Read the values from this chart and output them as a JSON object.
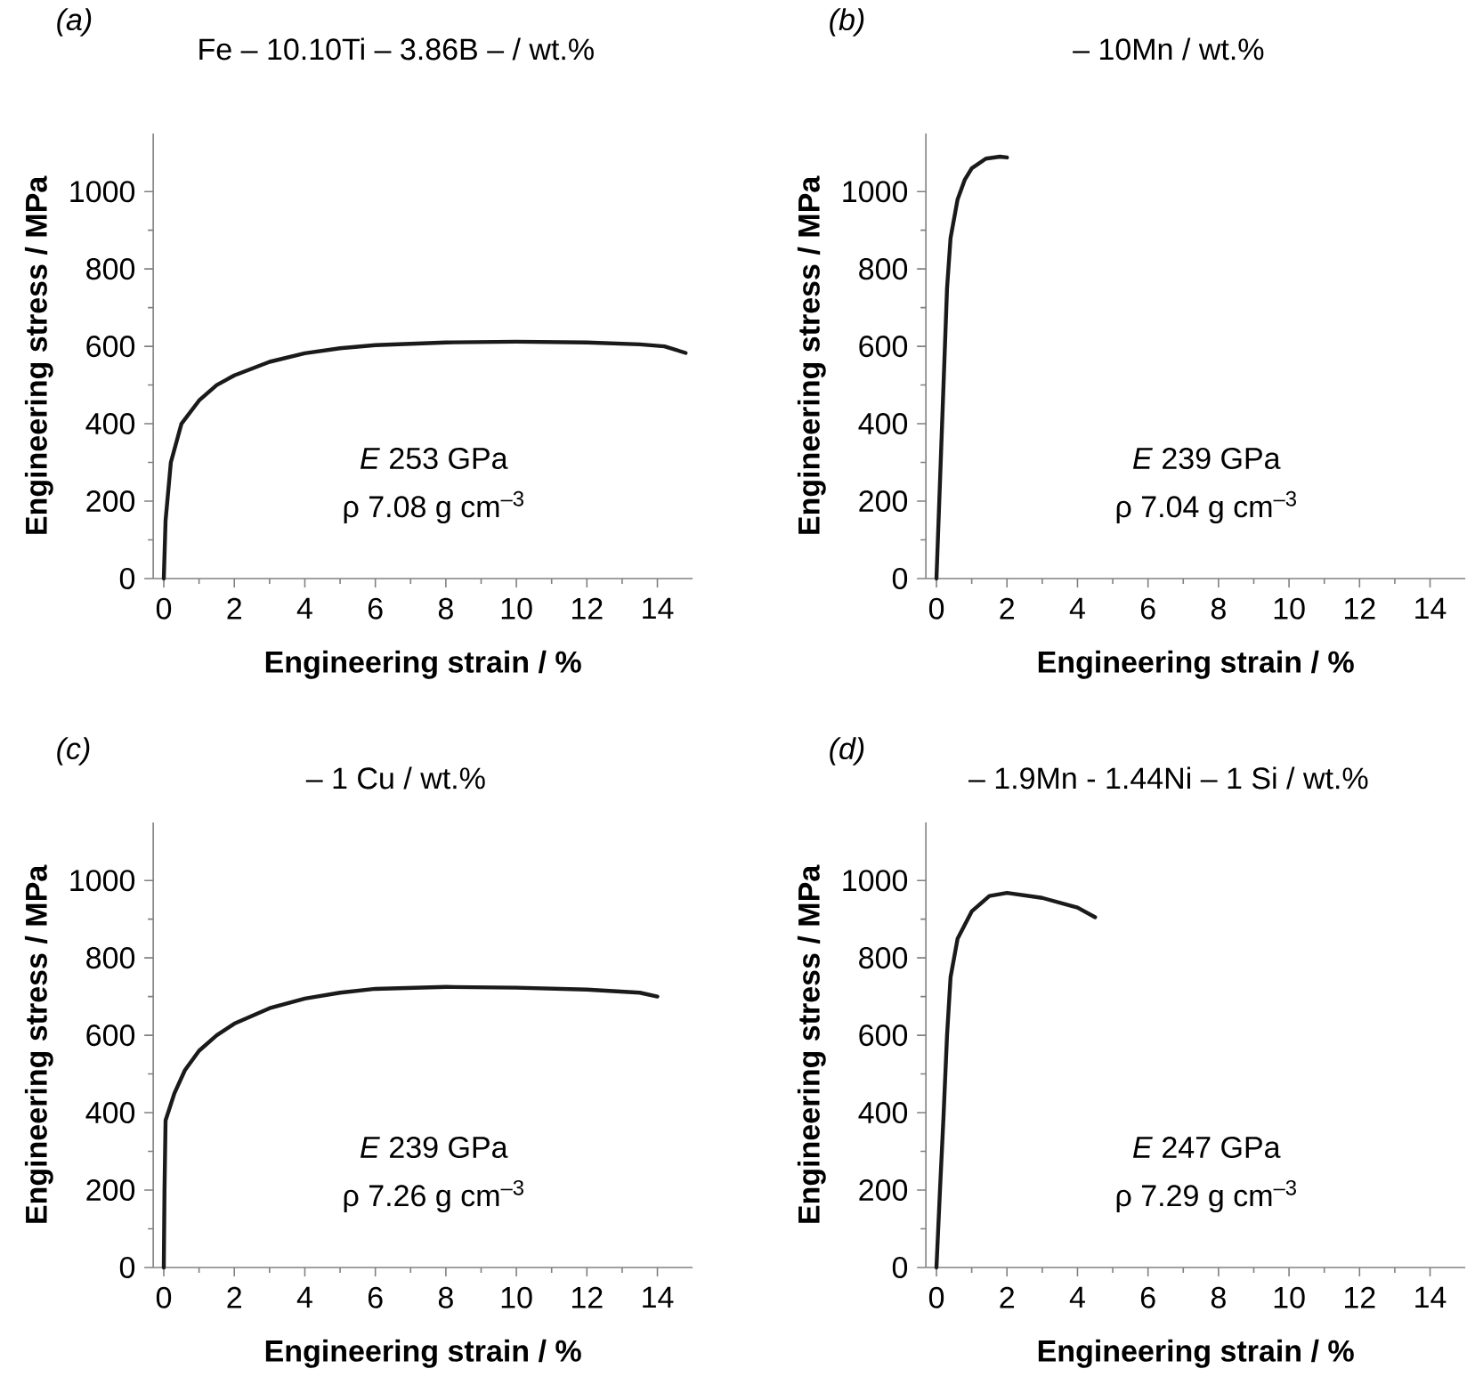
{
  "chart_data": [
    {
      "type": "line",
      "title": "Fe – 10.10Ti – 3.86B – / wt.%",
      "xlabel": "Engineering strain / %",
      "ylabel": "Engineering stress / MPa",
      "xlim": [
        -0.3,
        15
      ],
      "ylim": [
        0,
        1150
      ],
      "xticks": [
        0,
        2,
        4,
        6,
        8,
        10,
        12,
        14
      ],
      "yticks": [
        0,
        200,
        400,
        600,
        800,
        1000
      ],
      "annotations": [
        "*(a)*",
        "*E* 253 GPa",
        "ρ 7.08 g cm$^{–3}$"
      ],
      "series": [
        {
          "color": "#1a1a1a",
          "x": [
            0,
            0.05,
            0.2,
            0.5,
            1,
            1.5,
            2,
            3,
            4,
            5,
            6,
            8,
            10,
            12,
            13.5,
            14.2,
            14.8
          ],
          "values": [
            0,
            150,
            300,
            400,
            460,
            500,
            525,
            560,
            582,
            595,
            603,
            610,
            612,
            610,
            605,
            600,
            583
          ]
        }
      ]
    },
    {
      "type": "line",
      "title": "– 10Mn / wt.%",
      "xlabel": "Engineering strain / %",
      "ylabel": "Engineering stress / MPa",
      "xlim": [
        -0.3,
        15
      ],
      "ylim": [
        0,
        1150
      ],
      "xticks": [
        0,
        2,
        4,
        6,
        8,
        10,
        12,
        14
      ],
      "yticks": [
        0,
        200,
        400,
        600,
        800,
        1000
      ],
      "annotations": [
        "*(b)*",
        "*E* 239 GPa",
        "ρ 7.04 g cm$^{–3}$"
      ],
      "series": [
        {
          "color": "#1a1a1a",
          "x": [
            0,
            0.1,
            0.2,
            0.3,
            0.4,
            0.6,
            0.8,
            1,
            1.4,
            1.8,
            2
          ],
          "values": [
            0,
            250,
            500,
            750,
            880,
            980,
            1030,
            1060,
            1085,
            1090,
            1088
          ]
        }
      ]
    },
    {
      "type": "line",
      "title": "– 1 Cu / wt.%",
      "xlabel": "Engineering strain / %",
      "ylabel": "Engineering stress / MPa",
      "xlim": [
        -0.3,
        15
      ],
      "ylim": [
        0,
        1150
      ],
      "xticks": [
        0,
        2,
        4,
        6,
        8,
        10,
        12,
        14
      ],
      "yticks": [
        0,
        200,
        400,
        600,
        800,
        1000
      ],
      "annotations": [
        "*(c)*",
        "*E* 239 GPa",
        "ρ 7.26 g cm$^{–3}$"
      ],
      "series": [
        {
          "color": "#1a1a1a",
          "x": [
            0,
            0.02,
            0.05,
            0.3,
            0.6,
            1,
            1.5,
            2,
            3,
            4,
            5,
            6,
            8,
            10,
            12,
            13.5,
            14
          ],
          "values": [
            0,
            200,
            380,
            450,
            510,
            560,
            600,
            630,
            670,
            695,
            710,
            720,
            725,
            723,
            718,
            710,
            700
          ]
        }
      ]
    },
    {
      "type": "line",
      "title": "– 1.9Mn  - 1.44Ni – 1 Si / wt.%",
      "xlabel": "Engineering strain / %",
      "ylabel": "Engineering stress / MPa",
      "xlim": [
        -0.3,
        15
      ],
      "ylim": [
        0,
        1150
      ],
      "xticks": [
        0,
        2,
        4,
        6,
        8,
        10,
        12,
        14
      ],
      "yticks": [
        0,
        200,
        400,
        600,
        800,
        1000
      ],
      "annotations": [
        "*(d)*",
        "*E* 247 GPa",
        "ρ 7.29 g cm$^{–3}$"
      ],
      "series": [
        {
          "color": "#1a1a1a",
          "x": [
            0,
            0.1,
            0.2,
            0.3,
            0.4,
            0.6,
            1,
            1.5,
            2,
            3,
            4,
            4.5
          ],
          "values": [
            0,
            200,
            390,
            600,
            750,
            850,
            920,
            960,
            968,
            955,
            930,
            905
          ]
        }
      ]
    }
  ]
}
